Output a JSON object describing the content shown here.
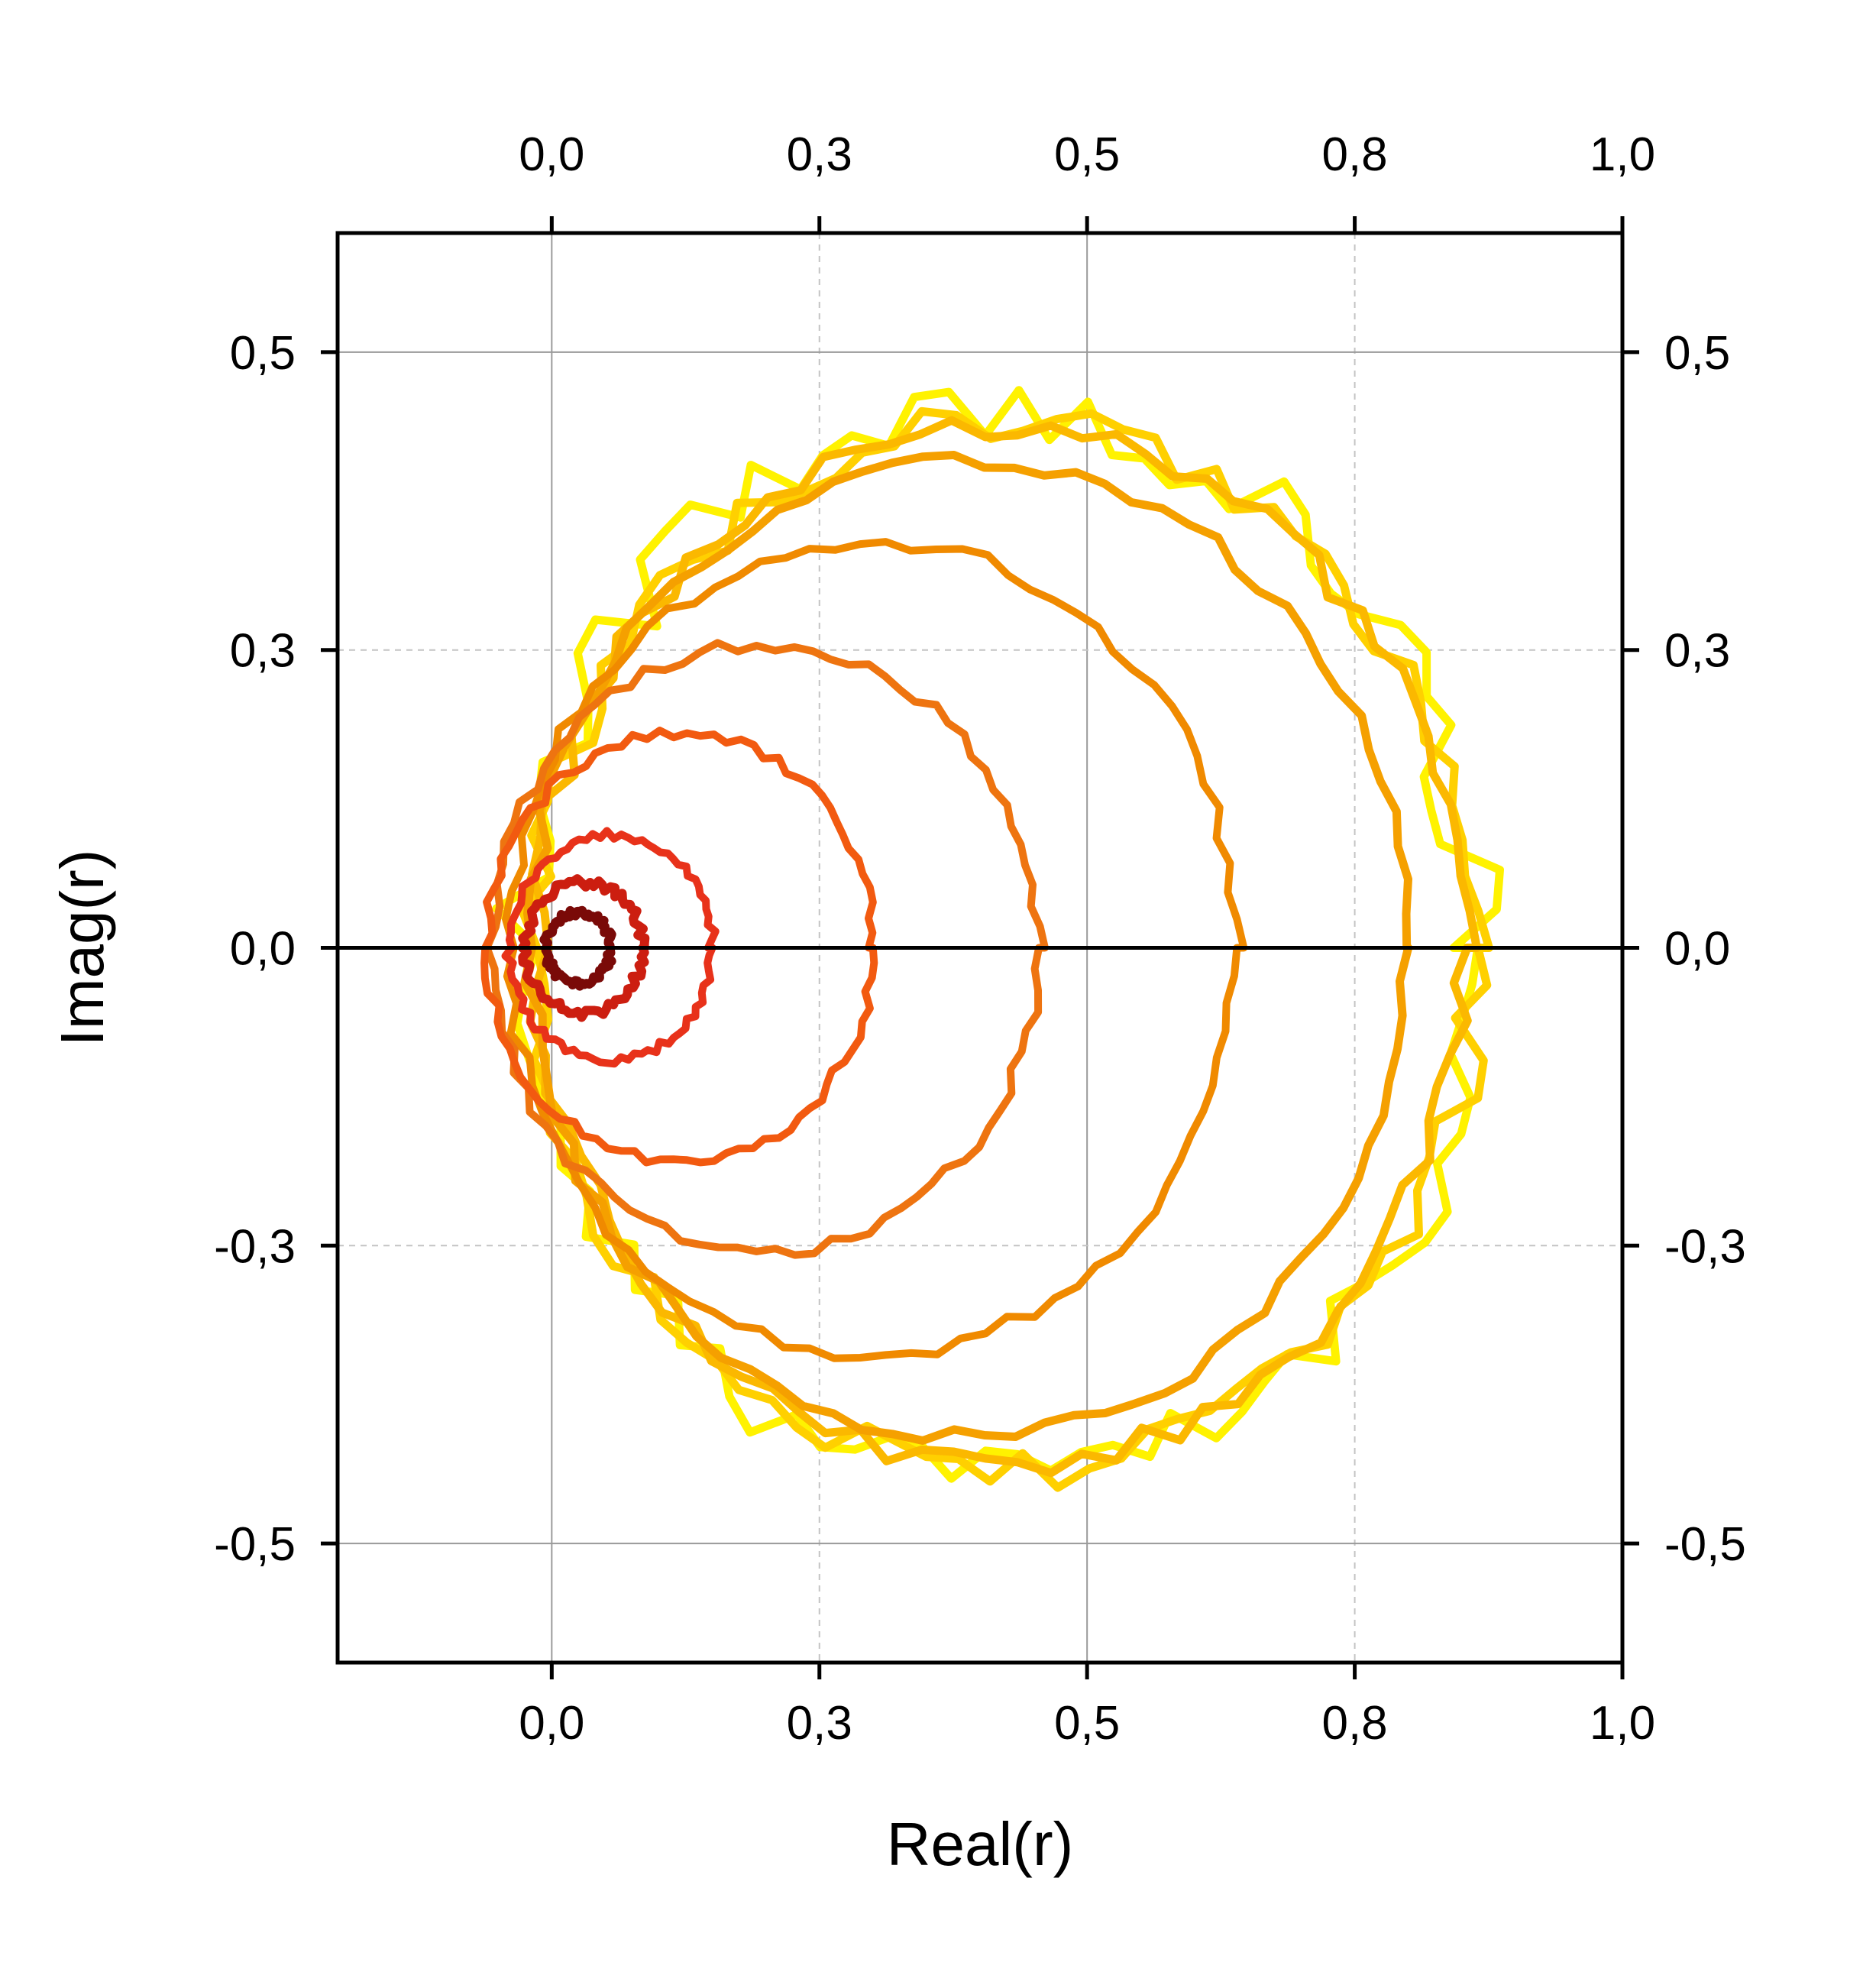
{
  "chart_data": {
    "type": "line",
    "xlabel": "Real(r)",
    "ylabel": "Imag(r)",
    "xlim": [
      -0.2,
      1.0
    ],
    "ylim": [
      -0.6,
      0.6
    ],
    "x_ticks": [
      {
        "value": 0.0,
        "label": "0,0",
        "grid": "solid"
      },
      {
        "value": 0.25,
        "label": "0,3",
        "grid": "dashed"
      },
      {
        "value": 0.5,
        "label": "0,5",
        "grid": "solid"
      },
      {
        "value": 0.75,
        "label": "0,8",
        "grid": "dashed"
      },
      {
        "value": 1.0,
        "label": "1,0",
        "grid": "none"
      }
    ],
    "y_ticks": [
      {
        "value": 0.5,
        "label": "0,5",
        "grid": "solid"
      },
      {
        "value": 0.25,
        "label": "0,3",
        "grid": "dashed"
      },
      {
        "value": 0.0,
        "label": "0,0",
        "grid": "zero"
      },
      {
        "value": -0.25,
        "label": "-0,3",
        "grid": "dashed"
      },
      {
        "value": -0.5,
        "label": "-0,5",
        "grid": "solid"
      }
    ],
    "mirror_axes": true,
    "grid": true,
    "legend": "none",
    "series": [
      {
        "color": "#FFF200",
        "center": [
          0.42,
          0.0
        ],
        "radius": 0.445,
        "noise": 0.028
      },
      {
        "color": "#FFD000",
        "center": [
          0.425,
          0.0
        ],
        "radius": 0.44,
        "noise": 0.018
      },
      {
        "color": "#FBB800",
        "center": [
          0.42,
          0.0
        ],
        "radius": 0.435,
        "noise": 0.012
      },
      {
        "color": "#F5A000",
        "center": [
          0.39,
          0.0
        ],
        "radius": 0.41,
        "noise": 0.008
      },
      {
        "color": "#F08A00",
        "center": [
          0.3,
          0.0
        ],
        "radius": 0.34,
        "noise": 0.007
      },
      {
        "color": "#EE7410",
        "center": [
          0.2,
          0.0
        ],
        "radius": 0.255,
        "noise": 0.006
      },
      {
        "color": "#F25A10",
        "center": [
          0.12,
          0.0
        ],
        "radius": 0.18,
        "noise": 0.005
      },
      {
        "color": "#E8321A",
        "center": [
          0.055,
          0.0
        ],
        "radius": 0.095,
        "noise": 0.004
      },
      {
        "color": "#CC1E10",
        "center": [
          0.03,
          0.0
        ],
        "radius": 0.055,
        "noise": 0.004
      },
      {
        "color": "#7A0A08",
        "center": [
          0.025,
          0.0
        ],
        "radius": 0.03,
        "noise": 0.003
      }
    ]
  }
}
